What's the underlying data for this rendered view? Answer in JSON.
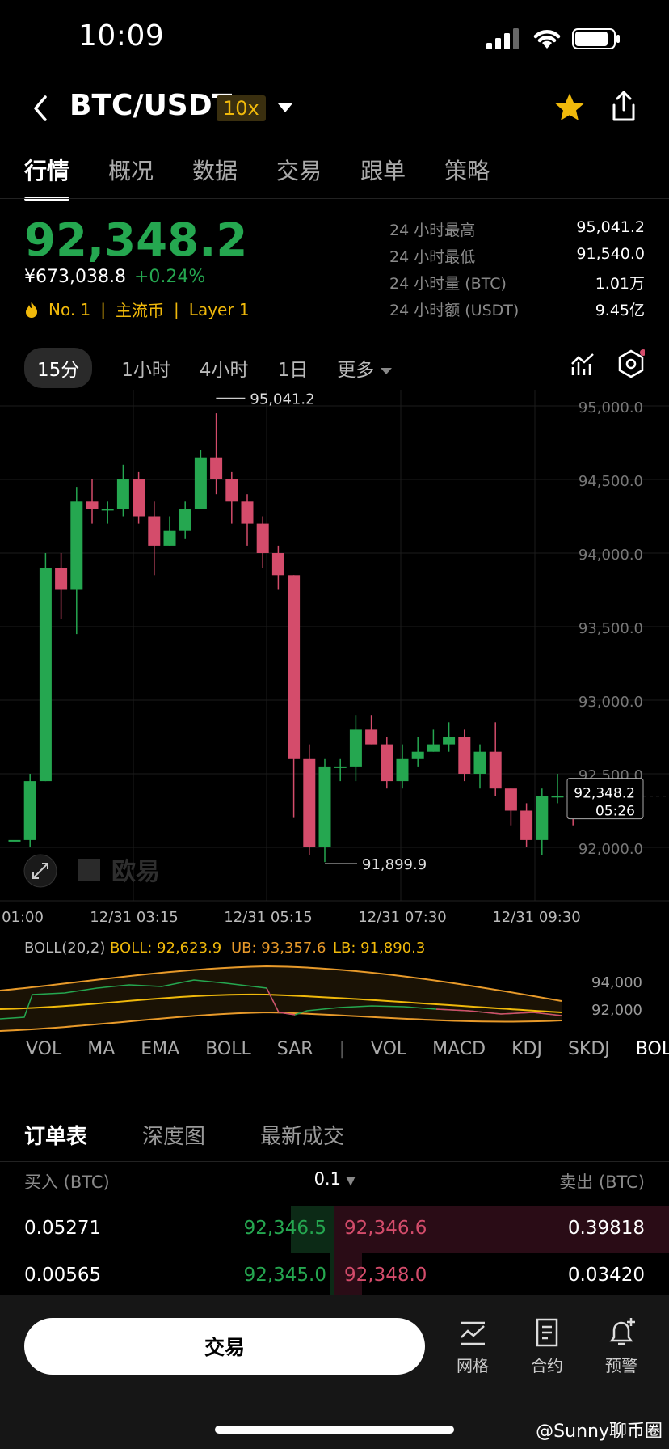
{
  "status": {
    "time": "10:09"
  },
  "header": {
    "pair": "BTC/USDT",
    "leverage": "10x"
  },
  "tabs": [
    "行情",
    "概况",
    "数据",
    "交易",
    "跟单",
    "策略"
  ],
  "ticker": {
    "price": "92,348.2",
    "cny": "¥673,038.8",
    "change": "+0.24%",
    "tags": [
      "No. 1",
      "主流币",
      "Layer 1"
    ]
  },
  "stats": [
    {
      "label": "24 小时最高",
      "value": "95,041.2"
    },
    {
      "label": "24 小时最低",
      "value": "91,540.0"
    },
    {
      "label": "24 小时量 (BTC)",
      "value": "1.01万"
    },
    {
      "label": "24 小时额 (USDT)",
      "value": "9.45亿"
    }
  ],
  "timeframes": [
    "15分",
    "1小时",
    "4小时",
    "1日",
    "更多"
  ],
  "chart": {
    "y_ticks": [
      "95,000.0",
      "94,500.0",
      "94,000.0",
      "93,500.0",
      "93,000.0",
      "92,500.0",
      "92,000.0"
    ],
    "x_ticks": [
      "01:00",
      "12/31 03:15",
      "12/31 05:15",
      "12/31 07:30",
      "12/31 09:30"
    ],
    "high_label": "95,041.2",
    "low_label": "91,899.9",
    "last_price": "92,348.2",
    "countdown": "05:26",
    "watermark": "欧易",
    "colors": {
      "up": "#25a750",
      "down": "#d44c6b"
    }
  },
  "chart_data": {
    "type": "candlestick",
    "ylim": [
      91900,
      95070
    ],
    "candles": [
      [
        92050,
        92050,
        91850,
        91850
      ],
      [
        92050,
        92450,
        92500,
        92000
      ],
      [
        92450,
        93900,
        94000,
        92450
      ],
      [
        93900,
        93750,
        94000,
        93550
      ],
      [
        93750,
        94350,
        94450,
        93450
      ],
      [
        94350,
        94300,
        94500,
        94200
      ],
      [
        94300,
        94300,
        94350,
        94200
      ],
      [
        94300,
        94500,
        94600,
        94250
      ],
      [
        94500,
        94250,
        94550,
        94200
      ],
      [
        94250,
        94050,
        94350,
        93850
      ],
      [
        94050,
        94150,
        94250,
        94050
      ],
      [
        94150,
        94300,
        94350,
        94100
      ],
      [
        94300,
        94650,
        94700,
        94300
      ],
      [
        94650,
        94500,
        94950,
        94400
      ],
      [
        94500,
        94350,
        94550,
        94200
      ],
      [
        94350,
        94200,
        94400,
        94050
      ],
      [
        94200,
        94000,
        94250,
        93900
      ],
      [
        94000,
        93850,
        94050,
        93750
      ],
      [
        93850,
        92600,
        93850,
        92200
      ],
      [
        92600,
        92000,
        92700,
        91950
      ],
      [
        92000,
        92550,
        92600,
        91900
      ],
      [
        92550,
        92550,
        92600,
        92450
      ],
      [
        92550,
        92800,
        92900,
        92450
      ],
      [
        92800,
        92700,
        92900,
        92700
      ],
      [
        92700,
        92450,
        92750,
        92400
      ],
      [
        92450,
        92600,
        92700,
        92400
      ],
      [
        92600,
        92650,
        92750,
        92550
      ],
      [
        92650,
        92700,
        92800,
        92650
      ],
      [
        92700,
        92750,
        92850,
        92650
      ],
      [
        92750,
        92500,
        92800,
        92450
      ],
      [
        92500,
        92650,
        92700,
        92400
      ],
      [
        92650,
        92400,
        92850,
        92350
      ],
      [
        92400,
        92250,
        92400,
        92150
      ],
      [
        92250,
        92050,
        92300,
        92000
      ],
      [
        92050,
        92350,
        92400,
        91950
      ],
      [
        92350,
        92350,
        92500,
        92300
      ],
      [
        92350,
        92200,
        92400,
        92150
      ]
    ]
  },
  "boll": {
    "label": "BOLL(20,2)",
    "boll": "BOLL: 92,623.9",
    "ub": "UB: 93,357.6",
    "lb": "LB: 91,890.3",
    "ticks": [
      "94,000",
      "92,000"
    ]
  },
  "indicators": [
    "VOL",
    "MA",
    "EMA",
    "BOLL",
    "SAR",
    "|",
    "VOL",
    "MACD",
    "KDJ",
    "SKDJ",
    "BOL"
  ],
  "orderbook": {
    "tabs": [
      "订单表",
      "深度图",
      "最新成交"
    ],
    "buy_header": "买入 (BTC)",
    "step": "0.1",
    "sell_header": "卖出 (BTC)",
    "rows": [
      {
        "bid_qty": "0.05271",
        "bid": "92,346.5",
        "ask": "92,346.6",
        "ask_qty": "0.39818"
      },
      {
        "bid_qty": "0.00565",
        "bid": "92,345.0",
        "ask": "92,348.0",
        "ask_qty": "0.03420"
      }
    ]
  },
  "bottom": {
    "trade": "交易",
    "icons": [
      {
        "label": "网格",
        "icon": "grid-chart-icon"
      },
      {
        "label": "合约",
        "icon": "contract-doc-icon"
      },
      {
        "label": "预警",
        "icon": "alert-bell-icon"
      }
    ],
    "watermark": "@Sunny聊币圈"
  }
}
